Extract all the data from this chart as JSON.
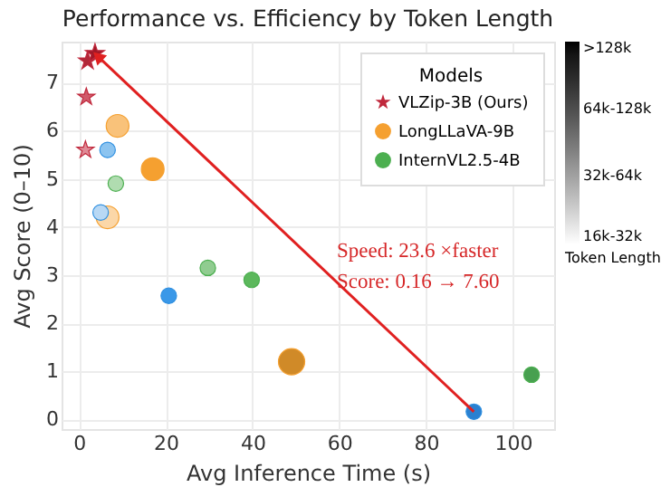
{
  "chart_data": {
    "type": "bubble",
    "title": "Performance vs. Efficiency by Token Length",
    "xlabel": "Avg Inference Time (s)",
    "ylabel": "Avg Score (0–10)",
    "legend_title": "Models",
    "clabel": "Token Length",
    "series": [
      {
        "name": "VLZip-3B (Ours)",
        "color": "#c0283c",
        "marker": "star",
        "x": [
          1.5,
          1.7,
          2.0,
          3.7
        ],
        "values": [
          5.6,
          6.7,
          7.45,
          7.6
        ],
        "sizes": [
          0.17,
          0.17,
          0.19,
          0.21
        ],
        "colors": [
          "#e08a96",
          "#d05a6a",
          "#b02838",
          "#a01828"
        ]
      },
      {
        "name": "LongLLaVA-9B",
        "color": "#f5a030",
        "marker": "circle",
        "x": [
          6.6,
          8.9,
          17,
          49
        ],
        "values": [
          4.2,
          6.1,
          5.2,
          1.2
        ],
        "sizes": [
          0.75,
          0.75,
          0.75,
          1
        ],
        "colors": [
          "#fbd7a8",
          "#f9c27a",
          "#f5a030",
          "#d08a28"
        ]
      },
      {
        "name": "InternVL2.5-4B",
        "color": "#4caf50",
        "marker": "circle",
        "x": [
          8.5,
          29.7,
          39.8,
          104.3
        ],
        "values": [
          4.9,
          3.15,
          2.9,
          0.93
        ],
        "sizes": [
          0.35,
          0.35,
          0.35,
          0.35
        ],
        "colors": [
          "#b0dcb0",
          "#90cc90",
          "#5cb85c",
          "#48a050"
        ]
      },
      {
        "color": "#2e8fe0",
        "marker": "circle",
        "x": [
          5,
          6.6,
          20.7,
          91
        ],
        "values": [
          4.3,
          5.6,
          2.57,
          0.16
        ],
        "sizes": [
          0.35,
          0.35,
          0.35,
          0.35
        ],
        "colors": [
          "#b8d8f4",
          "#8cc4f0",
          "#3a98e8",
          "#2a80d0"
        ]
      }
    ],
    "xlim": [
      -4,
      109.5
    ],
    "xticks": [
      0,
      20,
      40,
      60,
      80,
      100
    ],
    "ylim": [
      -0.2,
      7.85
    ],
    "yticks": [
      0,
      1,
      2,
      3,
      4,
      5,
      6,
      7
    ],
    "clim": [
      0,
      3
    ],
    "cticks": [
      {
        "value": 0,
        "label": "16k-32k"
      },
      {
        "value": 1,
        "label": "32k-64k"
      },
      {
        "value": 2,
        "label": "64k-128k"
      },
      {
        "value": 3,
        "label": ">128k"
      }
    ],
    "annotations": [
      "Speed: 23.6 ×faster",
      "Score: 0.16 → 7.60"
    ],
    "grid": true,
    "legend": "top right"
  }
}
